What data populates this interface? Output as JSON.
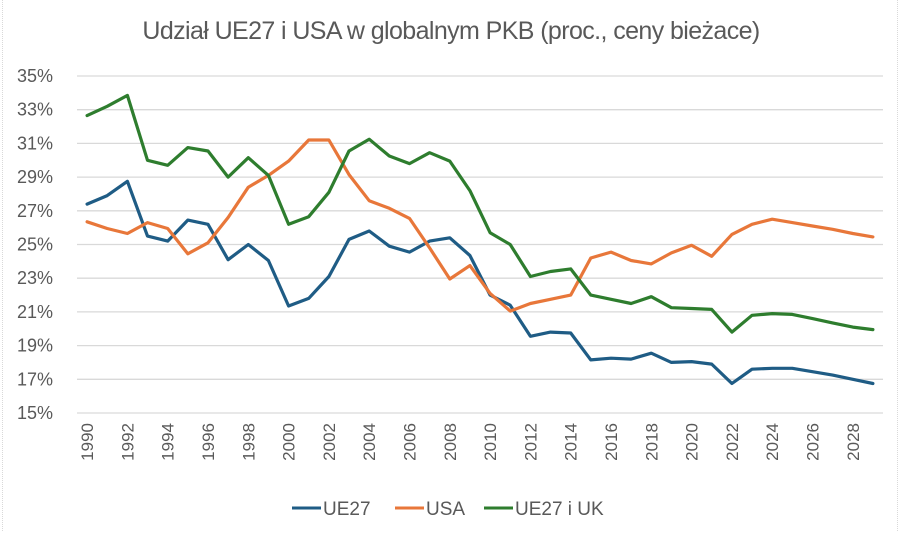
{
  "chart_data": {
    "type": "line",
    "title": "Udział UE27 i USA w globalnym PKB (proc., ceny bieżace)",
    "xlabel": "",
    "ylabel": "",
    "ylim": [
      15,
      35
    ],
    "y_ticks": [
      "15%",
      "17%",
      "19%",
      "21%",
      "23%",
      "25%",
      "27%",
      "29%",
      "31%",
      "33%",
      "35%"
    ],
    "y_tick_values": [
      15,
      17,
      19,
      21,
      23,
      25,
      27,
      29,
      31,
      33,
      35
    ],
    "x": [
      1990,
      1991,
      1992,
      1993,
      1994,
      1995,
      1996,
      1997,
      1998,
      1999,
      2000,
      2001,
      2002,
      2003,
      2004,
      2005,
      2006,
      2007,
      2008,
      2009,
      2010,
      2011,
      2012,
      2013,
      2014,
      2015,
      2016,
      2017,
      2018,
      2019,
      2020,
      2021,
      2022,
      2023,
      2024,
      2025,
      2026,
      2027,
      2028,
      2029
    ],
    "x_tick_labels": [
      "1990",
      "1992",
      "1994",
      "1996",
      "1998",
      "2000",
      "2002",
      "2004",
      "2006",
      "2008",
      "2010",
      "2012",
      "2014",
      "2016",
      "2018",
      "2020",
      "2022",
      "2024",
      "2026",
      "2028"
    ],
    "grid": true,
    "legend_position": "bottom",
    "series": [
      {
        "name": "UE27",
        "color": "#1F5C85",
        "values": [
          27.4,
          27.9,
          28.75,
          25.5,
          25.2,
          26.45,
          26.2,
          24.1,
          25.0,
          24.05,
          21.35,
          21.8,
          23.1,
          25.3,
          25.8,
          24.9,
          24.55,
          25.2,
          25.4,
          24.35,
          22.0,
          21.4,
          19.55,
          19.8,
          19.75,
          18.15,
          18.25,
          18.2,
          18.55,
          18.0,
          18.05,
          17.9,
          16.75,
          17.6,
          17.65,
          17.65,
          17.45,
          17.25,
          17.0,
          16.75
        ]
      },
      {
        "name": "USA",
        "color": "#E8773A",
        "values": [
          26.35,
          25.95,
          25.65,
          26.3,
          25.95,
          24.45,
          25.1,
          26.6,
          28.4,
          29.1,
          29.95,
          31.2,
          31.2,
          29.15,
          27.6,
          27.15,
          26.55,
          24.8,
          22.95,
          23.75,
          22.1,
          21.05,
          21.5,
          21.75,
          22.0,
          24.2,
          24.55,
          24.05,
          23.85,
          24.5,
          24.95,
          24.3,
          25.6,
          26.2,
          26.5,
          26.3,
          26.1,
          25.9,
          25.65,
          25.45
        ]
      },
      {
        "name": "UE27 i UK",
        "color": "#2E7D2E",
        "values": [
          32.65,
          33.2,
          33.85,
          30.0,
          29.7,
          30.75,
          30.55,
          29.0,
          30.15,
          29.1,
          26.2,
          26.65,
          28.1,
          30.55,
          31.25,
          30.25,
          29.8,
          30.45,
          29.95,
          28.2,
          25.7,
          25.0,
          23.1,
          23.4,
          23.55,
          22.0,
          21.75,
          21.5,
          21.9,
          21.25,
          21.2,
          21.15,
          19.8,
          20.8,
          20.9,
          20.85,
          20.6,
          20.35,
          20.1,
          19.95
        ]
      }
    ]
  }
}
